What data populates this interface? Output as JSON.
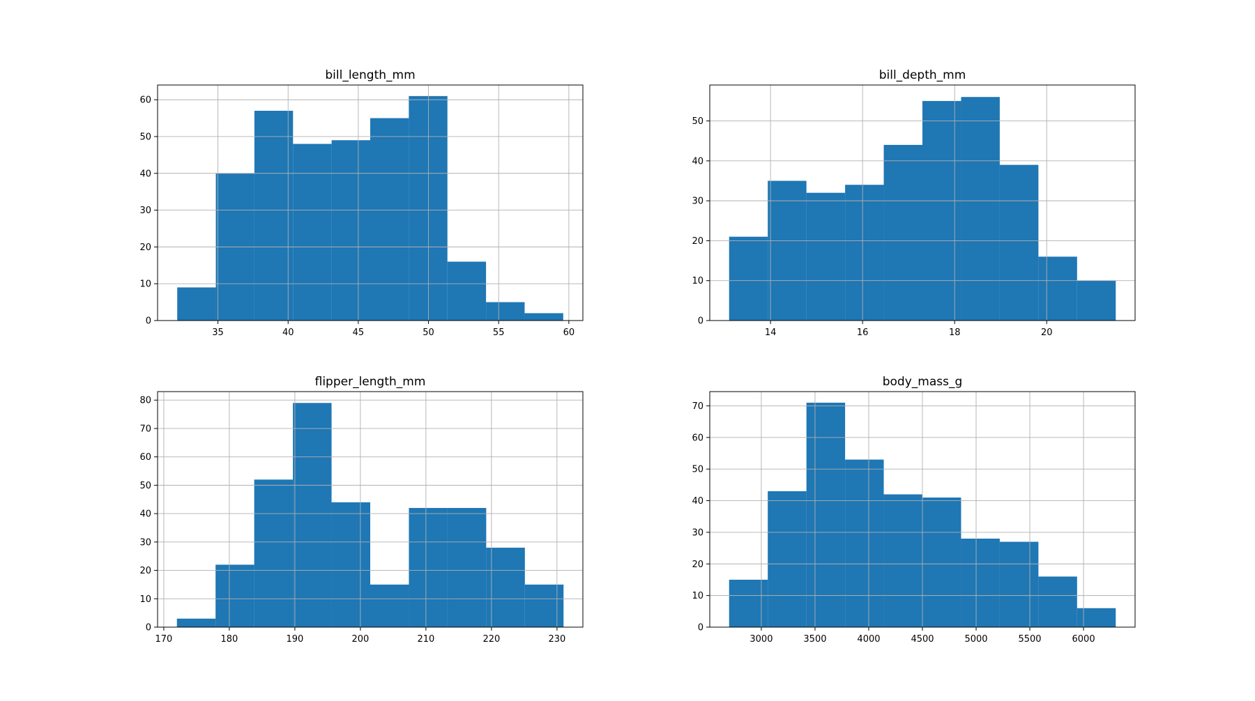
{
  "chart_data": [
    {
      "type": "bar",
      "title": "bill_length_mm",
      "bin_edges": [
        32.1,
        34.85,
        37.6,
        40.35,
        43.1,
        45.85,
        48.6,
        51.35,
        54.1,
        56.85,
        59.6
      ],
      "values": [
        9,
        40,
        57,
        48,
        49,
        55,
        61,
        16,
        5,
        2
      ],
      "xlim": [
        30.7,
        61.0
      ],
      "ylim": [
        0,
        64
      ],
      "xticks": [
        35,
        40,
        45,
        50,
        55,
        60
      ],
      "xtick_labels": [
        "35",
        "40",
        "45",
        "50",
        "55",
        "60"
      ],
      "yticks": [
        0,
        10,
        20,
        30,
        40,
        50,
        60
      ],
      "ytick_labels": [
        "0",
        "10",
        "20",
        "30",
        "40",
        "50",
        "60"
      ],
      "grid": true
    },
    {
      "type": "bar",
      "title": "bill_depth_mm",
      "bin_edges": [
        13.1,
        13.94,
        14.78,
        15.62,
        16.46,
        17.3,
        18.14,
        18.98,
        19.82,
        20.66,
        21.5
      ],
      "values": [
        21,
        35,
        32,
        34,
        44,
        55,
        56,
        39,
        16,
        10
      ],
      "xlim": [
        12.68,
        21.92
      ],
      "ylim": [
        0,
        59
      ],
      "xticks": [
        14,
        16,
        18,
        20
      ],
      "xtick_labels": [
        "14",
        "16",
        "18",
        "20"
      ],
      "yticks": [
        0,
        10,
        20,
        30,
        40,
        50
      ],
      "ytick_labels": [
        "0",
        "10",
        "20",
        "30",
        "40",
        "50"
      ],
      "grid": true
    },
    {
      "type": "bar",
      "title": "flipper_length_mm",
      "bin_edges": [
        172,
        177.9,
        183.8,
        189.7,
        195.6,
        201.5,
        207.4,
        213.3,
        219.2,
        225.1,
        231
      ],
      "values": [
        3,
        22,
        52,
        79,
        44,
        15,
        42,
        42,
        28,
        15
      ],
      "xlim": [
        169.05,
        233.95
      ],
      "ylim": [
        0,
        83
      ],
      "xticks": [
        170,
        180,
        190,
        200,
        210,
        220,
        230
      ],
      "xtick_labels": [
        "170",
        "180",
        "190",
        "200",
        "210",
        "220",
        "230"
      ],
      "yticks": [
        0,
        10,
        20,
        30,
        40,
        50,
        60,
        70,
        80
      ],
      "ytick_labels": [
        "0",
        "10",
        "20",
        "30",
        "40",
        "50",
        "60",
        "70",
        "80"
      ],
      "grid": true
    },
    {
      "type": "bar",
      "title": "body_mass_g",
      "bin_edges": [
        2700,
        3060,
        3420,
        3780,
        4140,
        4500,
        4860,
        5220,
        5580,
        5940,
        6300
      ],
      "values": [
        15,
        43,
        71,
        53,
        42,
        41,
        28,
        27,
        16,
        6
      ],
      "xlim": [
        2520,
        6480
      ],
      "ylim": [
        0,
        74.5
      ],
      "xticks": [
        3000,
        3500,
        4000,
        4500,
        5000,
        5500,
        6000
      ],
      "xtick_labels": [
        "3000",
        "3500",
        "4000",
        "4500",
        "5000",
        "5500",
        "6000"
      ],
      "yticks": [
        0,
        10,
        20,
        30,
        40,
        50,
        60,
        70
      ],
      "ytick_labels": [
        "0",
        "10",
        "20",
        "30",
        "40",
        "50",
        "60",
        "70"
      ],
      "grid": true
    }
  ]
}
